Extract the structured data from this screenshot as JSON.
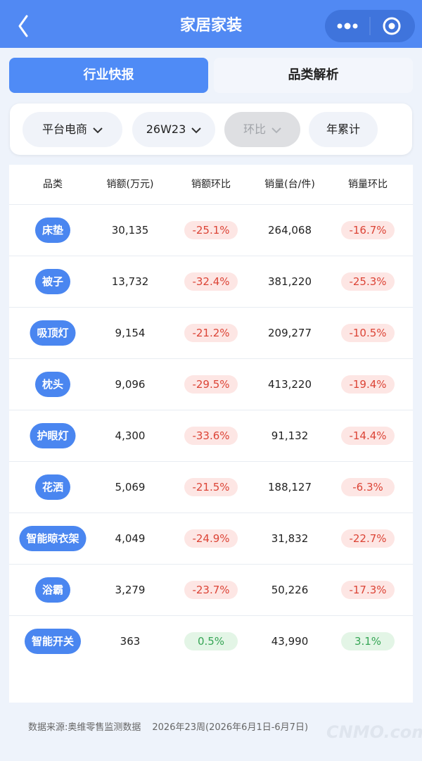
{
  "header": {
    "title": "家居家装"
  },
  "tabs": [
    "行业快报",
    "品类解析"
  ],
  "filters": [
    "平台电商",
    "26W23",
    "环比",
    "年累计"
  ],
  "table": {
    "columns": [
      "品类",
      "销额(万元)",
      "销额环比",
      "销量(台/件)",
      "销量环比"
    ],
    "rows": [
      [
        "床垫",
        "30,135",
        "-25.1%",
        "264,068",
        "-16.7%"
      ],
      [
        "被子",
        "13,732",
        "-32.4%",
        "381,220",
        "-25.3%"
      ],
      [
        "吸顶灯",
        "9,154",
        "-21.2%",
        "209,277",
        "-10.5%"
      ],
      [
        "枕头",
        "9,096",
        "-29.5%",
        "413,220",
        "-19.4%"
      ],
      [
        "护眼灯",
        "4,300",
        "-33.6%",
        "91,132",
        "-14.4%"
      ],
      [
        "花洒",
        "5,069",
        "-21.5%",
        "188,127",
        "-6.3%"
      ],
      [
        "智能晾衣架",
        "4,049",
        "-24.9%",
        "31,832",
        "-22.7%"
      ],
      [
        "浴霸",
        "3,279",
        "-23.7%",
        "50,226",
        "-17.3%"
      ],
      [
        "智能开关",
        "363",
        "0.5%",
        "43,990",
        "3.1%"
      ]
    ]
  },
  "footer": {
    "source": "数据来源:奥维零售监测数据",
    "period": "2026年23周(2026年6月1日-6月7日)"
  },
  "watermark": "CNMO.com"
}
